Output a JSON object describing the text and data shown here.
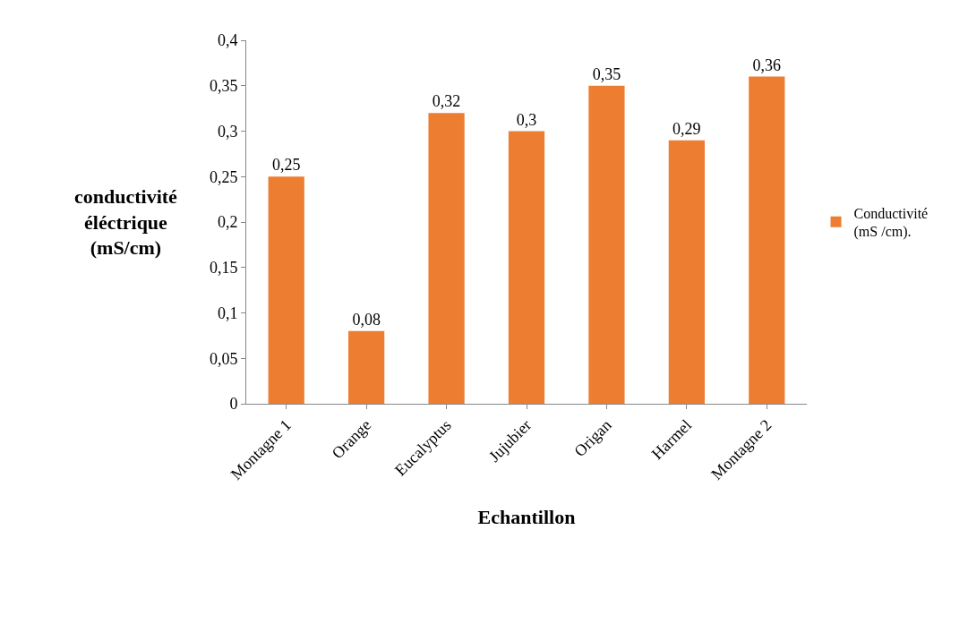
{
  "chart_data": {
    "type": "bar",
    "xlabel": "Echantillon",
    "ylabel": "conductivité\néléctrique\n(mS/cm)",
    "categories": [
      "Montagne 1",
      "Orange",
      "Eucalyptus",
      "Jujubier",
      "Origan",
      "Harmel",
      "Montagne 2"
    ],
    "series": [
      {
        "name": "Conductivité\n(mS /cm).",
        "color": "#ed7d31",
        "values": [
          0.25,
          0.08,
          0.32,
          0.3,
          0.35,
          0.29,
          0.36
        ],
        "value_labels": [
          "0,25",
          "0,08",
          "0,32",
          "0,3",
          "0,35",
          "0,29",
          "0,36"
        ]
      }
    ],
    "ylim": [
      0,
      0.4
    ],
    "yticks": [
      0,
      {
        "value": 0.05,
        "label": "0,05"
      },
      {
        "value": 0.1,
        "label": "0,1"
      },
      {
        "value": 0.15,
        "label": "0,15"
      },
      {
        "value": 0.2,
        "label": "0,2"
      },
      {
        "value": 0.25,
        "label": "0,25"
      },
      {
        "value": 0.3,
        "label": "0,3"
      },
      {
        "value": 0.35,
        "label": "0,35"
      },
      {
        "value": 0.4,
        "label": "0,4"
      }
    ],
    "legend": "right"
  }
}
